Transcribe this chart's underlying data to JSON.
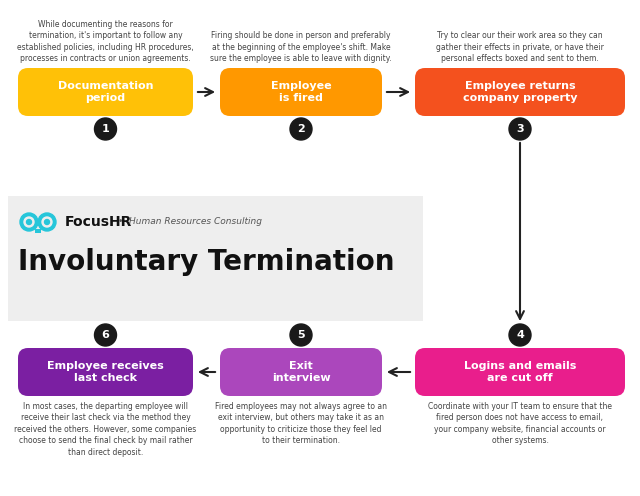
{
  "title": "Involuntary Termination",
  "brand": "FocusHR",
  "tagline": "•  Human Resources Consulting",
  "bg_color": "#ffffff",
  "gray_bg": "#eeeeee",
  "steps": [
    {
      "num": 1,
      "label": "Documentation\nperiod",
      "color": "#FFC107",
      "desc": "While documenting the reasons for\ntermination, it's important to follow any\nestablished policies, including HR procedures,\nprocesses in contracts or union agreements."
    },
    {
      "num": 2,
      "label": "Employee\nis fired",
      "color": "#FF9800",
      "desc": "Firing should be done in person and preferably\nat the beginning of the employee's shift. Make\nsure the employee is able to leave with dignity."
    },
    {
      "num": 3,
      "label": "Employee returns\ncompany property",
      "color": "#F4511E",
      "desc": "Try to clear our their work area so they can\ngather their effects in private, or have their\npersonal effects boxed and sent to them."
    },
    {
      "num": 4,
      "label": "Logins and emails\nare cut off",
      "color": "#E91E8C",
      "desc": "Coordinate with your IT team to ensure that the\nfired person does not have access to email,\nyour company website, financial accounts or\nother systems."
    },
    {
      "num": 5,
      "label": "Exit\ninterview",
      "color": "#AB47BC",
      "desc": "Fired employees may not always agree to an\nexit interview, but others may take it as an\nopportunity to criticize those they feel led\nto their termination."
    },
    {
      "num": 6,
      "label": "Employee receives\nlast check",
      "color": "#7B1FA2",
      "desc": "In most cases, the departing employee will\nreceive their last check via the method they\nreceived the others. However, some companies\nchoose to send the final check by mail rather\nthan direct deposit."
    }
  ],
  "circle_color": "#1a1a1a",
  "circle_text_color": "#ffffff",
  "label_text_color": "#ffffff",
  "desc_text_color": "#444444",
  "arrow_color": "#222222",
  "cyan": "#26C6DA"
}
